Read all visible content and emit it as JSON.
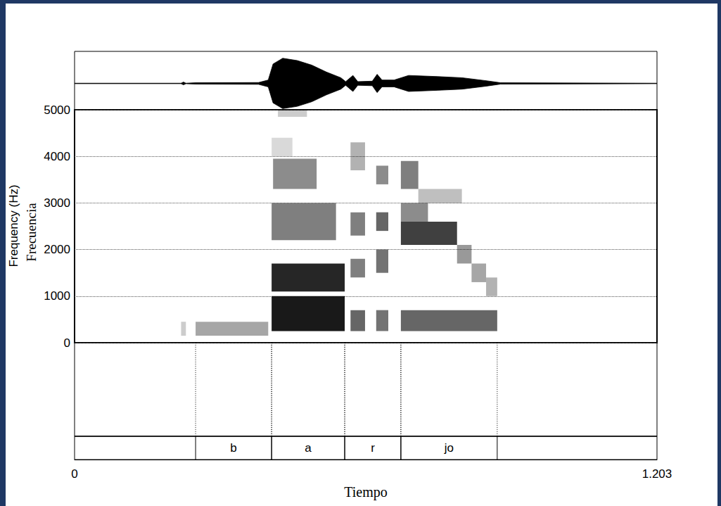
{
  "chart_data": {
    "type": "spectrogram",
    "xlabel": "Tiempo",
    "ylabels": [
      "Frequency (Hz)",
      "Frecuencia"
    ],
    "xlim": [
      0,
      1.203
    ],
    "xticks": [
      0,
      1.203
    ],
    "ylim": [
      0,
      5000
    ],
    "yticks": [
      0,
      1000,
      2000,
      3000,
      4000,
      5000
    ],
    "grid": true,
    "color": "#000000",
    "waveform": {
      "ylim": [
        -1.15,
        1.4
      ],
      "t": [
        0,
        0.22,
        0.225,
        0.23,
        0.25,
        0.38,
        0.4,
        0.41,
        0.43,
        0.46,
        0.49,
        0.52,
        0.55,
        0.56,
        0.575,
        0.585,
        0.615,
        0.625,
        0.635,
        0.66,
        0.69,
        0.75,
        0.8,
        0.85,
        0.88,
        1.203
      ],
      "amplitude": [
        0.01,
        0.01,
        0.06,
        0.01,
        0.03,
        0.04,
        0.15,
        0.85,
        1.1,
        1.0,
        0.8,
        0.5,
        0.25,
        0.08,
        0.35,
        0.08,
        0.1,
        0.4,
        0.15,
        0.15,
        0.35,
        0.3,
        0.25,
        0.12,
        0.03,
        0.01
      ]
    },
    "bands": [
      {
        "t": [
          0.22,
          0.23
        ],
        "f": [
          150,
          450
        ],
        "level": 0.2
      },
      {
        "t": [
          0.25,
          0.4
        ],
        "f": [
          150,
          450
        ],
        "level": 0.35
      },
      {
        "t": [
          0.407,
          0.558
        ],
        "f": [
          250,
          1000
        ],
        "level": 0.9
      },
      {
        "t": [
          0.407,
          0.558
        ],
        "f": [
          1100,
          1700
        ],
        "level": 0.85
      },
      {
        "t": [
          0.407,
          0.54
        ],
        "f": [
          2200,
          3000
        ],
        "level": 0.5
      },
      {
        "t": [
          0.41,
          0.5
        ],
        "f": [
          3300,
          3950
        ],
        "level": 0.45
      },
      {
        "t": [
          0.407,
          0.45
        ],
        "f": [
          4000,
          4400
        ],
        "level": 0.15
      },
      {
        "t": [
          0.42,
          0.48
        ],
        "f": [
          4850,
          5000
        ],
        "level": 0.2
      },
      {
        "t": [
          0.57,
          0.6
        ],
        "f": [
          250,
          700
        ],
        "level": 0.6
      },
      {
        "t": [
          0.57,
          0.6
        ],
        "f": [
          1400,
          1800
        ],
        "level": 0.5
      },
      {
        "t": [
          0.57,
          0.6
        ],
        "f": [
          2300,
          2800
        ],
        "level": 0.5
      },
      {
        "t": [
          0.57,
          0.6
        ],
        "f": [
          3700,
          4300
        ],
        "level": 0.3
      },
      {
        "t": [
          0.623,
          0.648
        ],
        "f": [
          250,
          700
        ],
        "level": 0.55
      },
      {
        "t": [
          0.623,
          0.648
        ],
        "f": [
          1500,
          2000
        ],
        "level": 0.55
      },
      {
        "t": [
          0.623,
          0.648
        ],
        "f": [
          2400,
          2800
        ],
        "level": 0.6
      },
      {
        "t": [
          0.623,
          0.648
        ],
        "f": [
          3400,
          3800
        ],
        "level": 0.45
      },
      {
        "t": [
          0.674,
          0.873
        ],
        "f": [
          250,
          700
        ],
        "level": 0.6
      },
      {
        "t": [
          0.674,
          0.79
        ],
        "f": [
          2100,
          2600
        ],
        "level": 0.75
      },
      {
        "t": [
          0.79,
          0.82
        ],
        "f": [
          1700,
          2100
        ],
        "level": 0.4
      },
      {
        "t": [
          0.82,
          0.85
        ],
        "f": [
          1300,
          1700
        ],
        "level": 0.35
      },
      {
        "t": [
          0.85,
          0.873
        ],
        "f": [
          1000,
          1400
        ],
        "level": 0.3
      },
      {
        "t": [
          0.674,
          0.73
        ],
        "f": [
          2600,
          3000
        ],
        "level": 0.45
      },
      {
        "t": [
          0.674,
          0.71
        ],
        "f": [
          3300,
          3900
        ],
        "level": 0.5
      },
      {
        "t": [
          0.71,
          0.8
        ],
        "f": [
          3000,
          3300
        ],
        "level": 0.25
      }
    ],
    "segments": [
      {
        "label": "b",
        "start": 0.25,
        "end": 0.407
      },
      {
        "label": "a",
        "start": 0.407,
        "end": 0.558
      },
      {
        "label": "r",
        "start": 0.558,
        "end": 0.674
      },
      {
        "label": "jo",
        "start": 0.674,
        "end": 0.873
      }
    ]
  }
}
